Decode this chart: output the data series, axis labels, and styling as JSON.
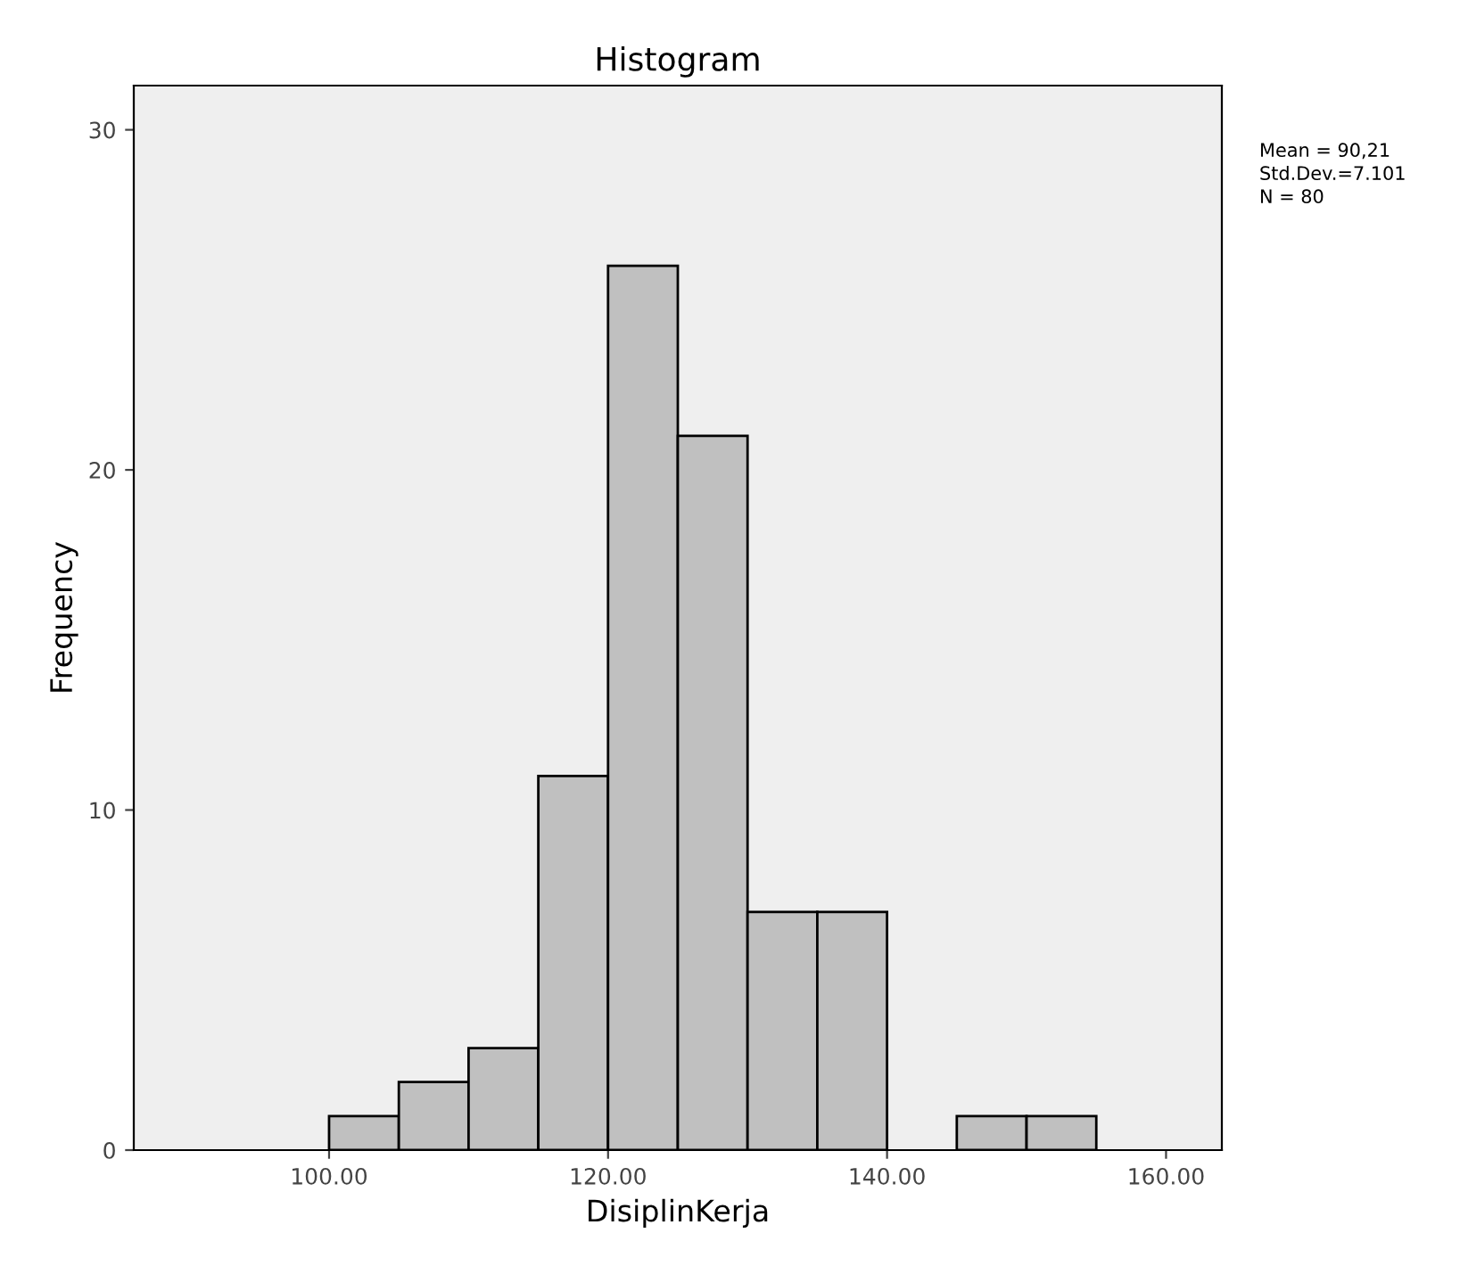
{
  "chart_data": {
    "type": "histogram",
    "title": "Histogram",
    "xlabel": "DisiplinKerja",
    "ylabel": "Frequency",
    "bins": [
      100,
      105,
      110,
      115,
      120,
      125,
      130,
      135,
      140,
      145,
      150,
      155
    ],
    "values": [
      1,
      2,
      3,
      11,
      26,
      21,
      7,
      7,
      0,
      1,
      1
    ],
    "color": "#c0c0c0",
    "xlim": [
      86,
      164
    ],
    "ylim": [
      0,
      31.3
    ],
    "xticks": [
      {
        "value": 100,
        "label": "100.00"
      },
      {
        "value": 120,
        "label": "120.00"
      },
      {
        "value": 140,
        "label": "140.00"
      },
      {
        "value": 160,
        "label": "160.00"
      }
    ],
    "yticks": [
      0,
      10,
      20,
      30
    ],
    "grid": false,
    "legend": false,
    "annotations": [
      "Mean = 90,21",
      "Std.Dev.=7.101",
      "N = 80"
    ]
  }
}
